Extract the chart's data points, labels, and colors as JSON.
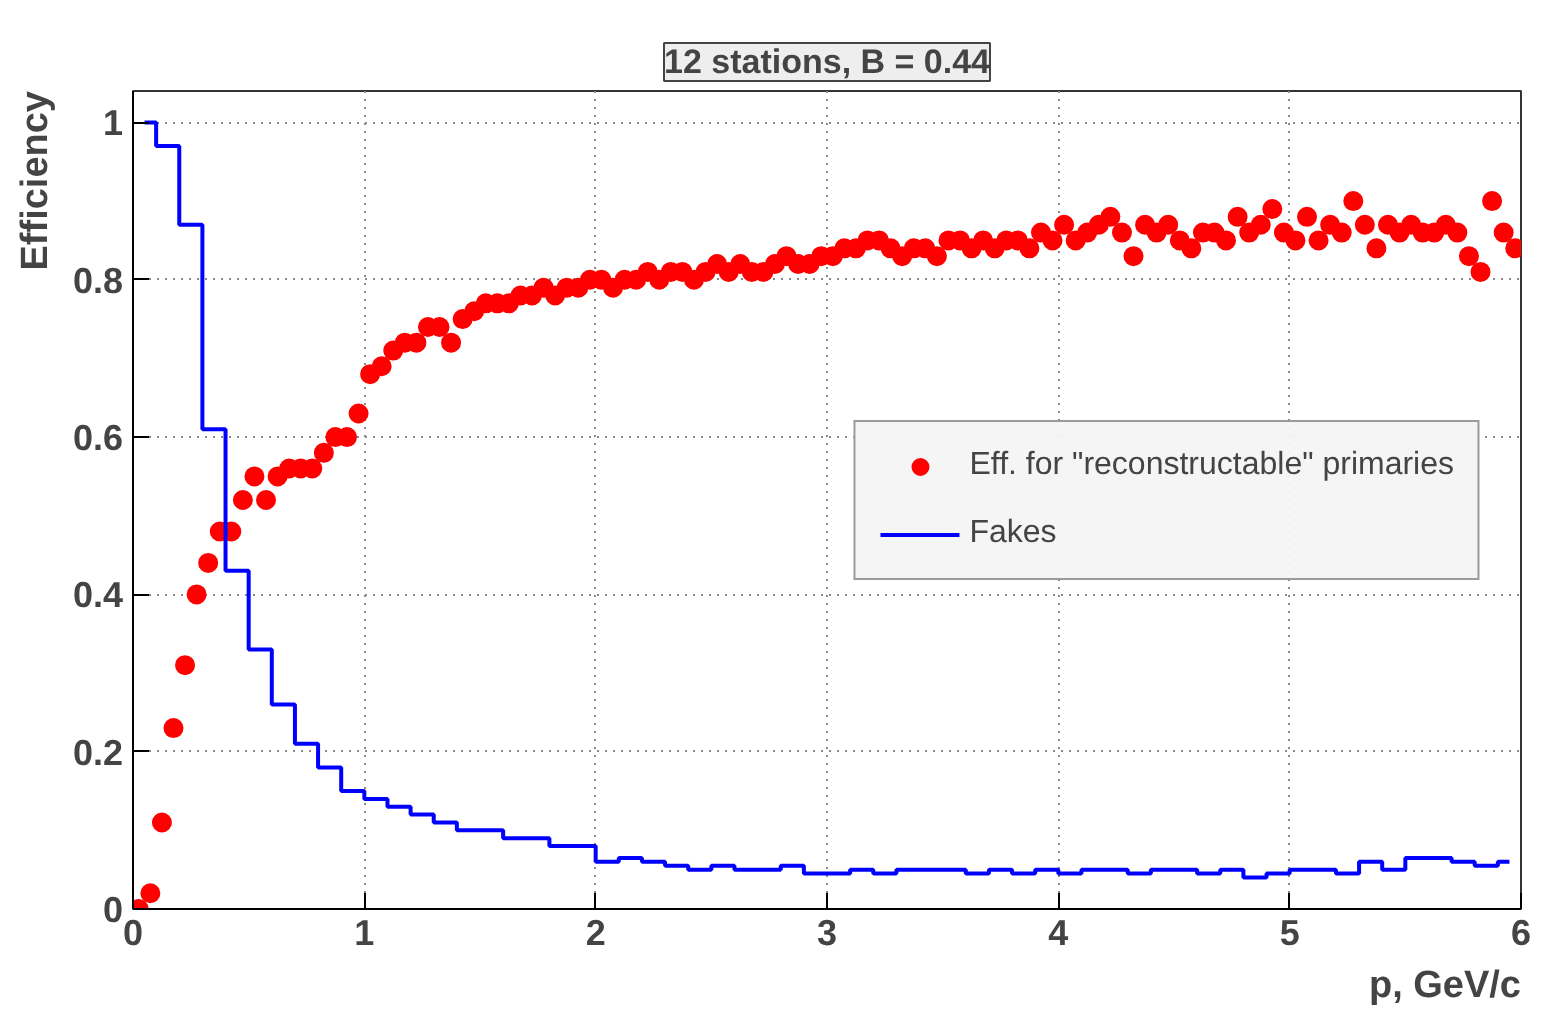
{
  "chart_data": {
    "type": "scatter",
    "title": "12 stations, B = 0.44",
    "xlabel": "p, GeV/c",
    "ylabel": "Efficiency",
    "xlim": [
      0,
      6
    ],
    "ylim": [
      0,
      1.04
    ],
    "xticks": [
      0,
      1,
      2,
      3,
      4,
      5,
      6
    ],
    "yticks": [
      0,
      0.2,
      0.4,
      0.6,
      0.8,
      1
    ],
    "grid": true,
    "legend": "right",
    "series": [
      {
        "name": "Eff. for \"reconstructable\" primaries",
        "color": "#ff0000",
        "marker": "circle",
        "x": [
          0.025,
          0.075,
          0.125,
          0.175,
          0.225,
          0.275,
          0.325,
          0.375,
          0.425,
          0.475,
          0.525,
          0.575,
          0.625,
          0.675,
          0.725,
          0.775,
          0.825,
          0.875,
          0.925,
          0.975,
          1.025,
          1.075,
          1.125,
          1.175,
          1.225,
          1.275,
          1.325,
          1.375,
          1.425,
          1.475,
          1.525,
          1.575,
          1.625,
          1.675,
          1.725,
          1.775,
          1.825,
          1.875,
          1.925,
          1.975,
          2.025,
          2.075,
          2.125,
          2.175,
          2.225,
          2.275,
          2.325,
          2.375,
          2.425,
          2.475,
          2.525,
          2.575,
          2.625,
          2.675,
          2.725,
          2.775,
          2.825,
          2.875,
          2.925,
          2.975,
          3.025,
          3.075,
          3.125,
          3.175,
          3.225,
          3.275,
          3.325,
          3.375,
          3.425,
          3.475,
          3.525,
          3.575,
          3.625,
          3.675,
          3.725,
          3.775,
          3.825,
          3.875,
          3.925,
          3.975,
          4.025,
          4.075,
          4.125,
          4.175,
          4.225,
          4.275,
          4.325,
          4.375,
          4.425,
          4.475,
          4.525,
          4.575,
          4.625,
          4.675,
          4.725,
          4.775,
          4.825,
          4.875,
          4.925,
          4.975,
          5.025,
          5.075,
          5.125,
          5.175,
          5.225,
          5.275,
          5.325,
          5.375,
          5.425,
          5.475,
          5.525,
          5.575,
          5.625,
          5.675,
          5.725,
          5.775,
          5.825,
          5.875,
          5.925,
          5.975
        ],
        "values": [
          0.0,
          0.02,
          0.11,
          0.23,
          0.31,
          0.4,
          0.44,
          0.48,
          0.48,
          0.52,
          0.55,
          0.52,
          0.55,
          0.56,
          0.56,
          0.56,
          0.58,
          0.6,
          0.6,
          0.63,
          0.68,
          0.69,
          0.71,
          0.72,
          0.72,
          0.74,
          0.74,
          0.72,
          0.75,
          0.76,
          0.77,
          0.77,
          0.77,
          0.78,
          0.78,
          0.79,
          0.78,
          0.79,
          0.79,
          0.8,
          0.8,
          0.79,
          0.8,
          0.8,
          0.81,
          0.8,
          0.81,
          0.81,
          0.8,
          0.81,
          0.82,
          0.81,
          0.82,
          0.81,
          0.81,
          0.82,
          0.83,
          0.82,
          0.82,
          0.83,
          0.83,
          0.84,
          0.84,
          0.85,
          0.85,
          0.84,
          0.83,
          0.84,
          0.84,
          0.83,
          0.85,
          0.85,
          0.84,
          0.85,
          0.84,
          0.85,
          0.85,
          0.84,
          0.86,
          0.85,
          0.87,
          0.85,
          0.86,
          0.87,
          0.88,
          0.86,
          0.83,
          0.87,
          0.86,
          0.87,
          0.85,
          0.84,
          0.86,
          0.86,
          0.85,
          0.88,
          0.86,
          0.87,
          0.89,
          0.86,
          0.85,
          0.88,
          0.85,
          0.87,
          0.86,
          0.9,
          0.87,
          0.84,
          0.87,
          0.86,
          0.87,
          0.86,
          0.86,
          0.87,
          0.86,
          0.83,
          0.81,
          0.9,
          0.86,
          0.84
        ]
      },
      {
        "name": "Fakes",
        "color": "#0000ff",
        "type": "step",
        "x": [
          0.05,
          0.15,
          0.25,
          0.35,
          0.45,
          0.55,
          0.65,
          0.75,
          0.85,
          0.95,
          1.05,
          1.15,
          1.25,
          1.35,
          1.45,
          1.55,
          1.65,
          1.75,
          1.85,
          1.95,
          2.05,
          2.15,
          2.25,
          2.35,
          2.45,
          2.55,
          2.65,
          2.75,
          2.85,
          2.95,
          3.05,
          3.15,
          3.25,
          3.35,
          3.45,
          3.55,
          3.65,
          3.75,
          3.85,
          3.95,
          4.05,
          4.15,
          4.25,
          4.35,
          4.45,
          4.55,
          4.65,
          4.75,
          4.85,
          4.95,
          5.05,
          5.15,
          5.25,
          5.35,
          5.45,
          5.55,
          5.65,
          5.75,
          5.85,
          5.95
        ],
        "values": [
          1.0,
          0.97,
          0.87,
          0.61,
          0.43,
          0.33,
          0.26,
          0.21,
          0.18,
          0.15,
          0.14,
          0.13,
          0.12,
          0.11,
          0.1,
          0.1,
          0.09,
          0.09,
          0.08,
          0.08,
          0.06,
          0.065,
          0.06,
          0.055,
          0.05,
          0.055,
          0.05,
          0.05,
          0.055,
          0.045,
          0.045,
          0.05,
          0.045,
          0.05,
          0.05,
          0.05,
          0.045,
          0.05,
          0.045,
          0.05,
          0.045,
          0.05,
          0.05,
          0.045,
          0.05,
          0.05,
          0.045,
          0.05,
          0.04,
          0.045,
          0.05,
          0.05,
          0.045,
          0.06,
          0.05,
          0.065,
          0.065,
          0.06,
          0.055,
          0.06
        ]
      }
    ]
  }
}
